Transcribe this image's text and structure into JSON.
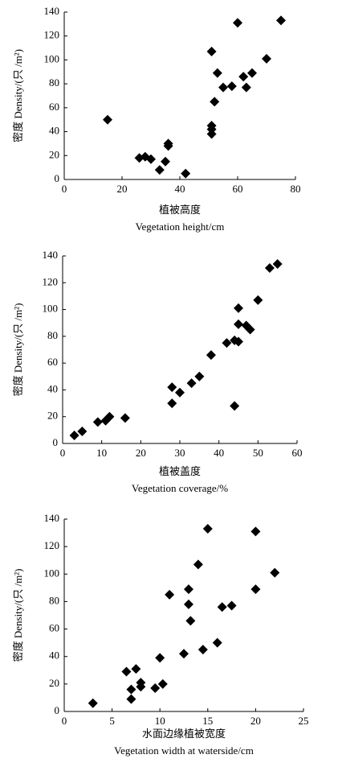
{
  "chart_data": [
    {
      "type": "scatter",
      "color": "#000000",
      "marker": "diamond",
      "ylabel": "密度 Density/(只 /m²)",
      "xlabel": [
        "植被高度",
        "Vegetation height/cm"
      ],
      "x": [
        15,
        26,
        28,
        30,
        33,
        35,
        36,
        36,
        42,
        51,
        51,
        51,
        51,
        52,
        53,
        55,
        58,
        60,
        62,
        63,
        65,
        70,
        75
      ],
      "values": [
        50,
        18,
        19,
        17,
        8,
        15,
        30,
        28,
        5,
        107,
        45,
        42,
        38,
        65,
        89,
        77,
        78,
        131,
        86,
        77,
        89,
        101,
        133
      ],
      "xlim": [
        0,
        80
      ],
      "xticks": [
        0,
        20,
        40,
        60,
        80
      ],
      "ylim": [
        0,
        140
      ],
      "yticks": [
        0,
        20,
        40,
        60,
        80,
        100,
        120,
        140
      ]
    },
    {
      "type": "scatter",
      "color": "#000000",
      "marker": "diamond",
      "ylabel": "密度 Density/(只 /m²)",
      "xlabel": [
        "植被盖度",
        "Vegetation coverage/%"
      ],
      "x": [
        3,
        5,
        9,
        11,
        12,
        16,
        28,
        28,
        30,
        33,
        35,
        38,
        42,
        44,
        44,
        45,
        45,
        45,
        47,
        48,
        50,
        53,
        55
      ],
      "values": [
        6,
        9,
        16,
        17,
        20,
        19,
        30,
        42,
        38,
        45,
        50,
        66,
        75,
        77,
        28,
        76,
        101,
        89,
        88,
        85,
        107,
        131,
        134
      ],
      "xlim": [
        0,
        60
      ],
      "xticks": [
        0,
        10,
        20,
        30,
        40,
        50,
        60
      ],
      "ylim": [
        0,
        140
      ],
      "yticks": [
        0,
        20,
        40,
        60,
        80,
        100,
        120,
        140
      ]
    },
    {
      "type": "scatter",
      "color": "#000000",
      "marker": "diamond",
      "ylabel": "密度 Density/(只 /m²)",
      "xlabel": [
        "水面边缘植被宽度",
        "Vegetation width at waterside/cm"
      ],
      "x": [
        3,
        6.5,
        7,
        7,
        7.5,
        8,
        8,
        9.5,
        10,
        10.3,
        11,
        12.5,
        13,
        13,
        13.2,
        14,
        14.5,
        15,
        16,
        16.5,
        17.5,
        20,
        20,
        22
      ],
      "values": [
        6,
        29,
        9,
        16,
        31,
        18,
        21,
        17,
        39,
        20,
        85,
        42,
        89,
        78,
        66,
        107,
        45,
        133,
        50,
        76,
        77,
        89,
        131,
        101
      ],
      "xlim": [
        0,
        25
      ],
      "xticks": [
        0,
        5,
        10,
        15,
        20,
        25
      ],
      "ylim": [
        0,
        140
      ],
      "yticks": [
        0,
        20,
        40,
        60,
        80,
        100,
        120,
        140
      ]
    }
  ]
}
